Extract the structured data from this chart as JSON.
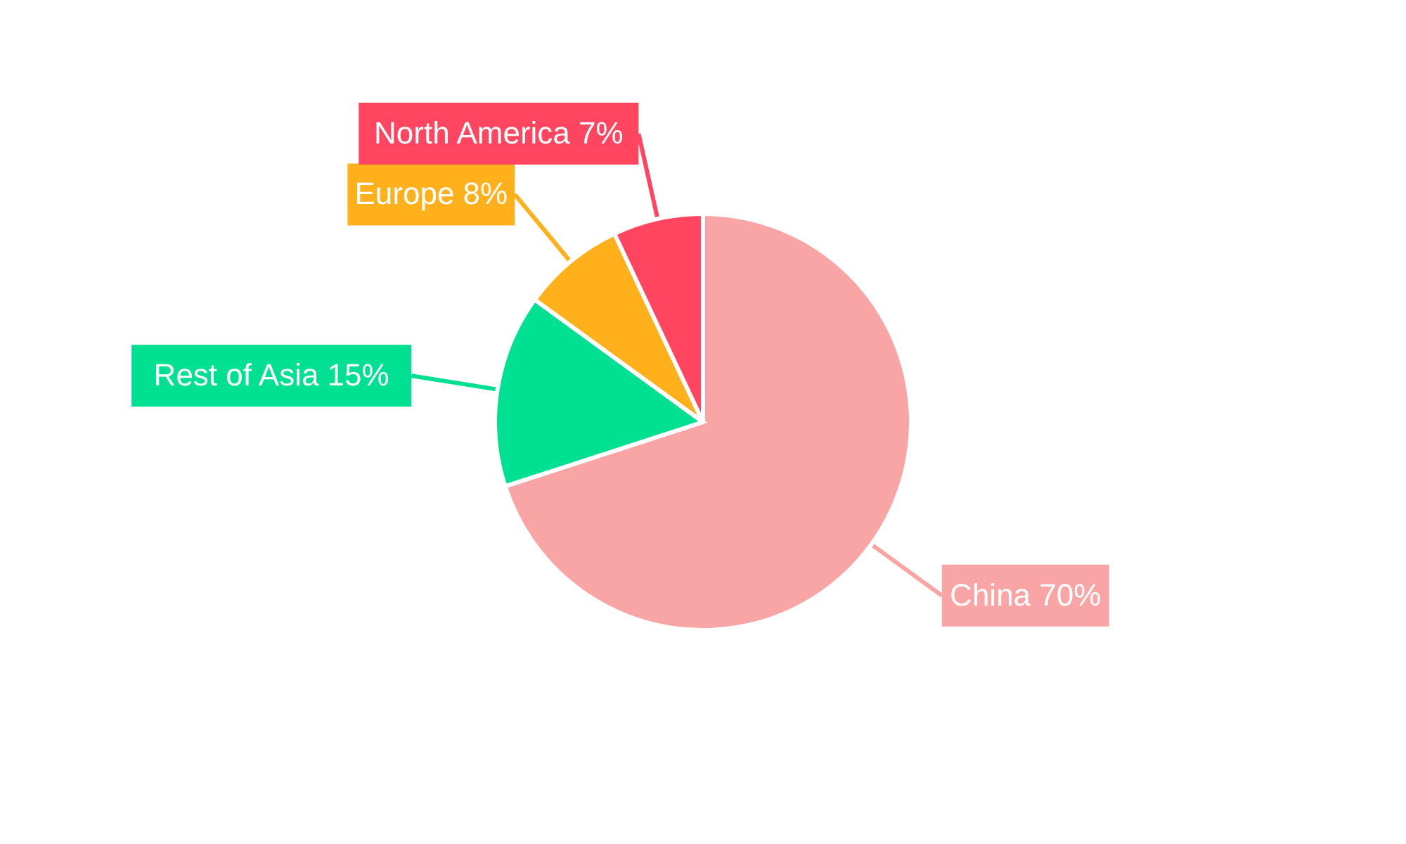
{
  "chart_data": {
    "type": "pie",
    "categories": [
      "China",
      "Rest of Asia",
      "Europe",
      "North America"
    ],
    "values": [
      70,
      15,
      8,
      7
    ],
    "colors": [
      "#f9a5a5",
      "#00e093",
      "#ffb01a",
      "#ff4560"
    ],
    "value_labels": [
      "70%",
      "15%",
      "8%",
      "7%"
    ]
  }
}
